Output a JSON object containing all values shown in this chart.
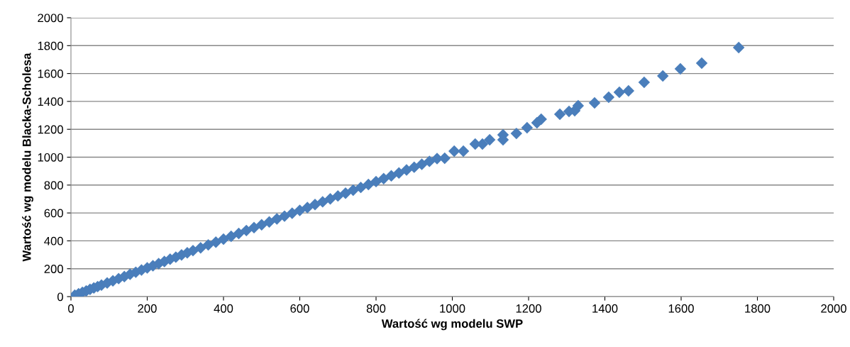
{
  "chart_data": {
    "type": "scatter",
    "xlabel": "Wartość wg modelu SWP",
    "ylabel": "Wartość wg modelu Blacka-Scholesa",
    "xlim": [
      0,
      2000
    ],
    "ylim": [
      0,
      2000
    ],
    "xticks": [
      0,
      200,
      400,
      600,
      800,
      1000,
      1200,
      1400,
      1600,
      1800,
      2000
    ],
    "yticks": [
      0,
      200,
      400,
      600,
      800,
      1000,
      1200,
      1400,
      1600,
      1800,
      2000
    ],
    "grid": "y",
    "marker": "diamond",
    "series": [
      {
        "color": "#4a7ebb",
        "x": [
          10,
          20,
          30,
          40,
          50,
          60,
          70,
          80,
          95,
          110,
          125,
          140,
          155,
          170,
          185,
          200,
          215,
          230,
          245,
          260,
          275,
          290,
          305,
          320,
          340,
          360,
          380,
          400,
          420,
          440,
          460,
          480,
          500,
          520,
          540,
          560,
          580,
          600,
          620,
          640,
          660,
          680,
          700,
          720,
          740,
          760,
          780,
          800,
          820,
          840,
          860,
          880,
          900,
          920,
          940,
          960,
          980,
          1005,
          1029,
          1060,
          1079,
          1098,
          1133,
          1133,
          1168,
          1196,
          1222,
          1233,
          1282,
          1306,
          1321,
          1330,
          1373,
          1410,
          1438,
          1462,
          1503,
          1552,
          1598,
          1654,
          1751
        ],
        "values": [
          10,
          20,
          31,
          41,
          52,
          62,
          72,
          83,
          98,
          113,
          129,
          144,
          160,
          175,
          191,
          206,
          221,
          237,
          252,
          268,
          283,
          299,
          314,
          330,
          350,
          371,
          391,
          412,
          433,
          453,
          474,
          495,
          515,
          536,
          557,
          577,
          598,
          618,
          639,
          660,
          680,
          701,
          722,
          742,
          763,
          783,
          804,
          825,
          846,
          866,
          887,
          908,
          928,
          949,
          970,
          990,
          992,
          1043,
          1043,
          1094,
          1094,
          1125,
          1160,
          1125,
          1170,
          1211,
          1247,
          1272,
          1308,
          1328,
          1333,
          1369,
          1389,
          1430,
          1466,
          1476,
          1537,
          1583,
          1634,
          1674,
          1786
        ]
      }
    ]
  }
}
